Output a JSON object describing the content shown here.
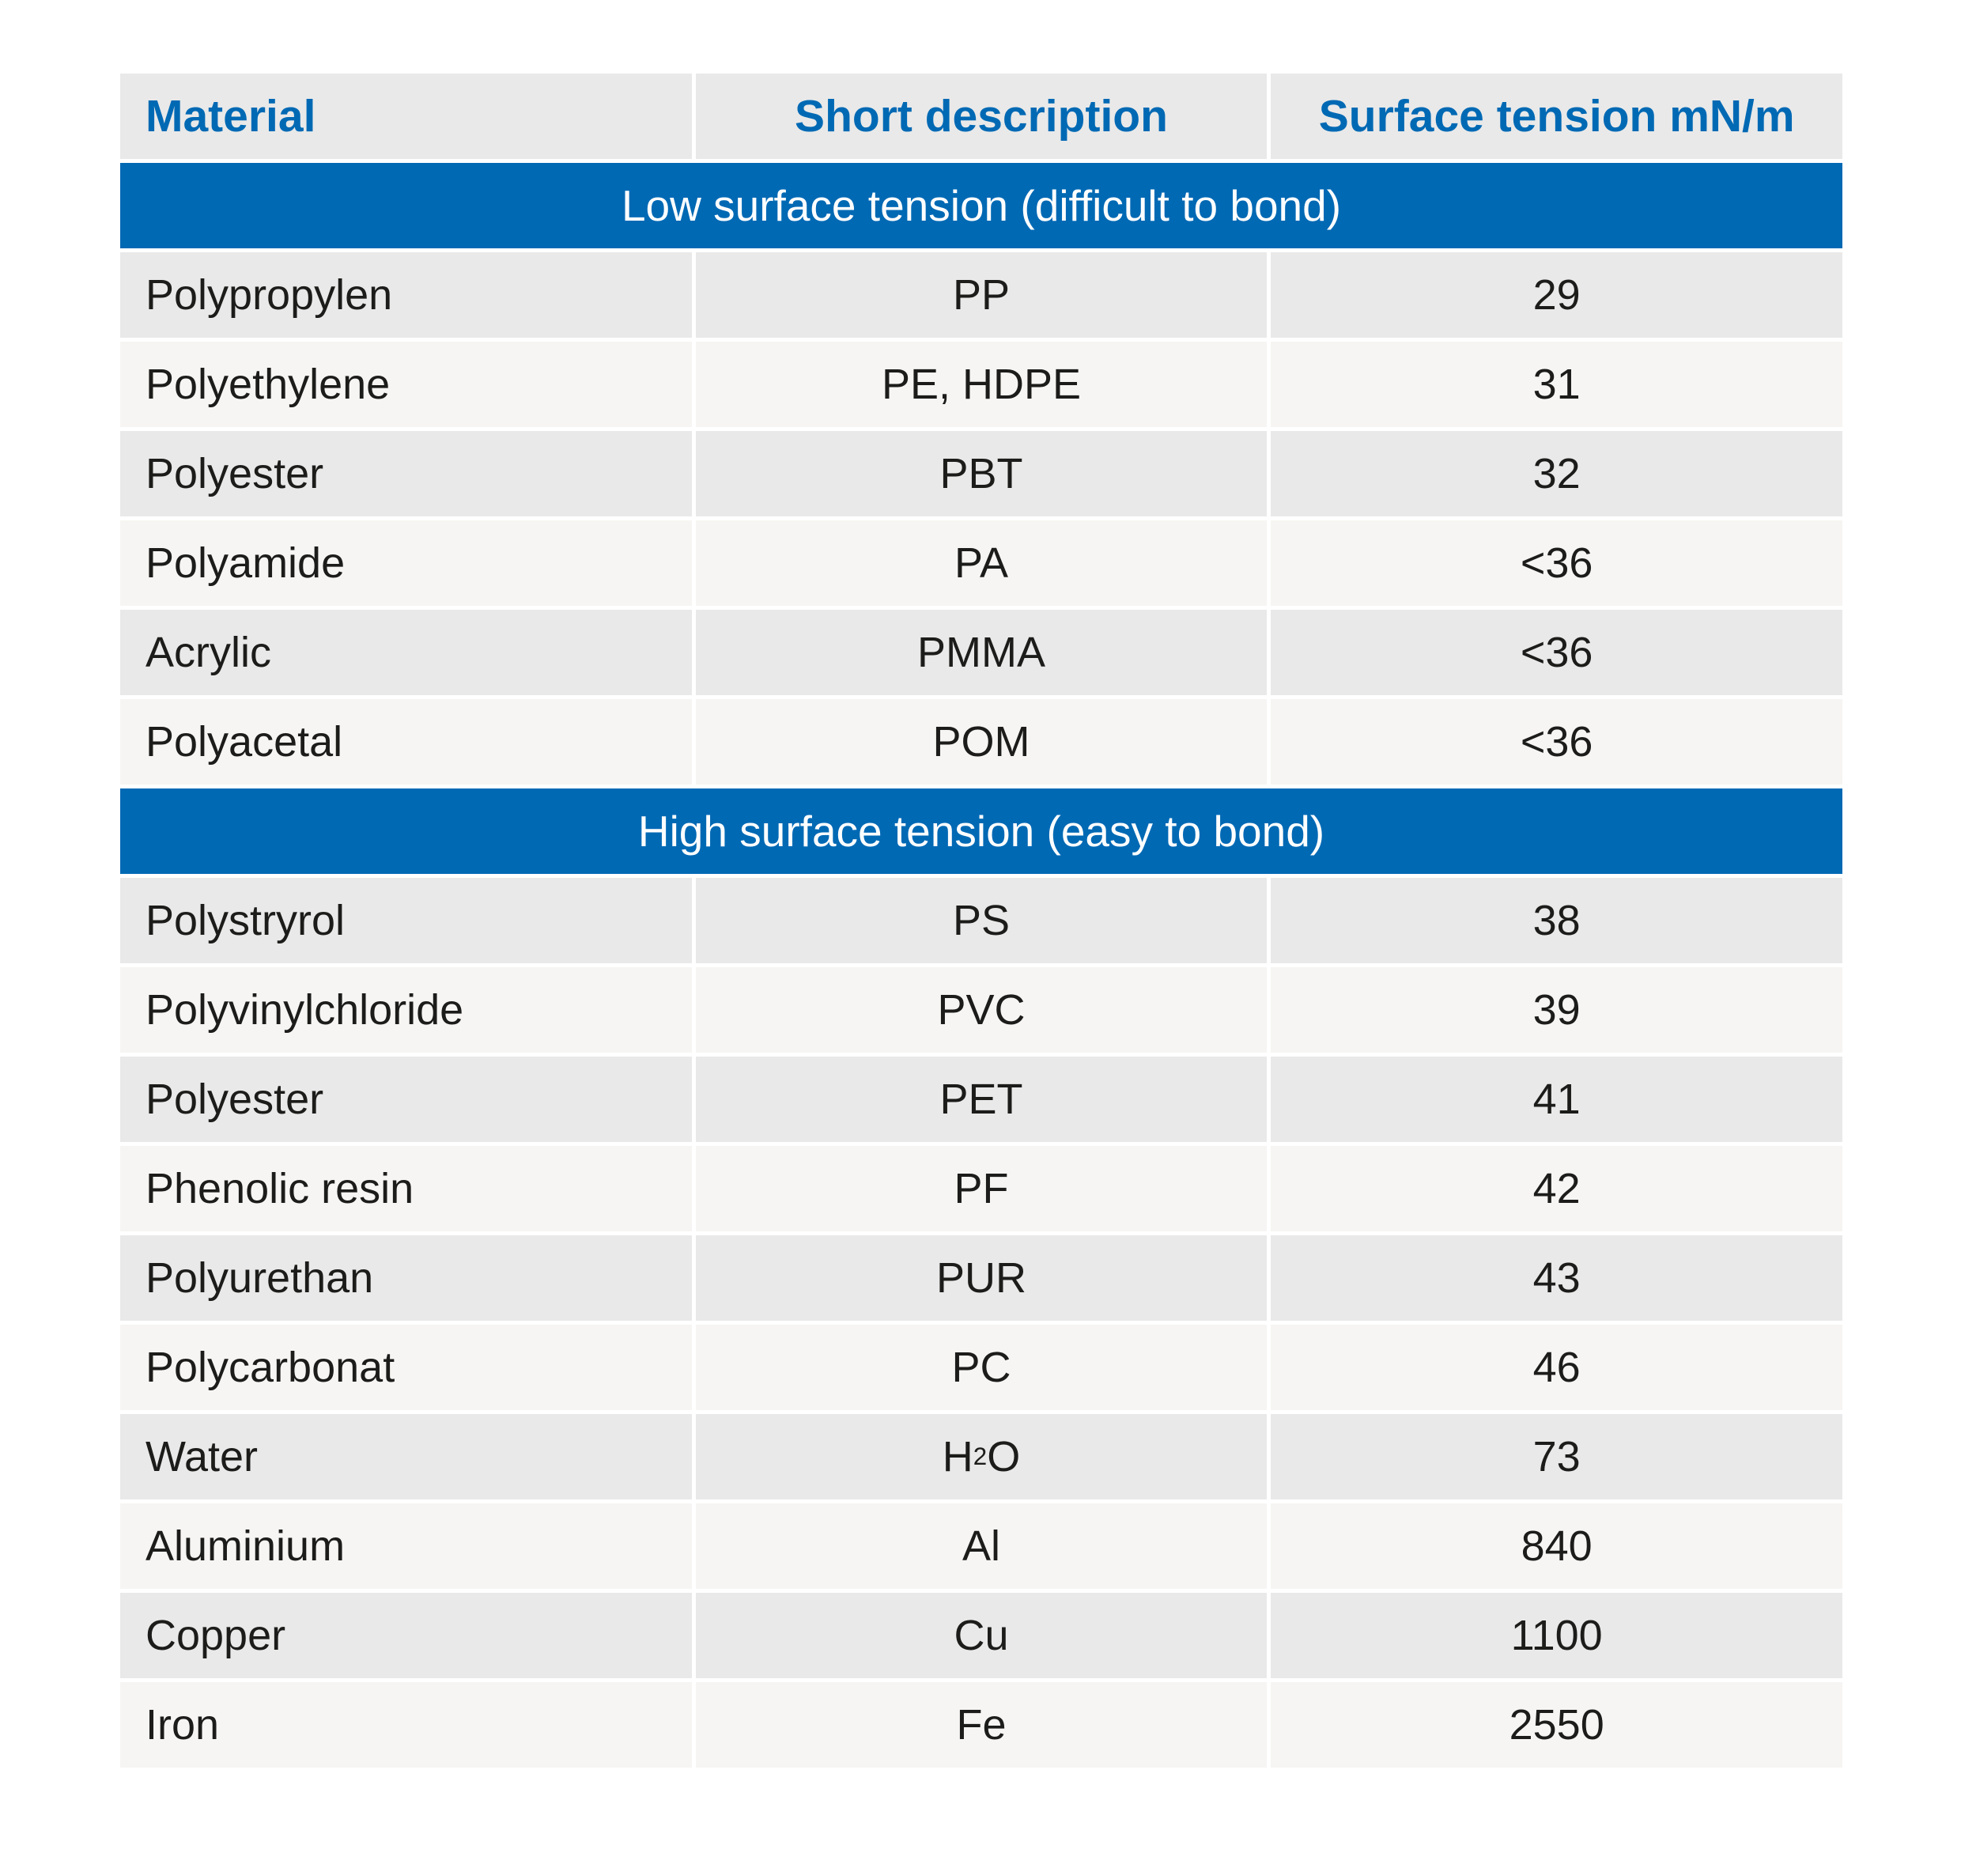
{
  "chart_data": {
    "type": "table",
    "columns": [
      "Material",
      "Short description",
      "Surface tension mN/m"
    ],
    "sections": [
      {
        "label": "Low surface tension (difficult to bond)",
        "rows": [
          [
            "Polypropylen",
            "PP",
            "29"
          ],
          [
            "Polyethylene",
            "PE, HDPE",
            "31"
          ],
          [
            "Polyester",
            "PBT",
            "32"
          ],
          [
            "Polyamide",
            "PA",
            "<36"
          ],
          [
            "Acrylic",
            "PMMA",
            "<36"
          ],
          [
            "Polyacetal",
            "POM",
            "<36"
          ]
        ]
      },
      {
        "label": "High surface tension (easy to bond)",
        "rows": [
          [
            "Polystryrol",
            "PS",
            "38"
          ],
          [
            "Polyvinylchloride",
            "PVC",
            "39"
          ],
          [
            "Polyester",
            "PET",
            "41"
          ],
          [
            "Phenolic resin",
            "PF",
            "42"
          ],
          [
            "Polyurethan",
            "PUR",
            "43"
          ],
          [
            "Polycarbonat",
            "PC",
            "46"
          ],
          [
            "Water",
            "H₂O",
            "73"
          ],
          [
            "Aluminium",
            "Al",
            "840"
          ],
          [
            "Copper",
            "Cu",
            "1100"
          ],
          [
            "Iron",
            "Fe",
            "2550"
          ]
        ]
      }
    ],
    "layout": {
      "column_alignment": [
        "left",
        "center",
        "center"
      ],
      "grid": "white gaps between cells, no border lines",
      "row_striping": "alternating gray / off-white starting gray in each section"
    }
  },
  "colors": {
    "accent_blue": "#0069b4",
    "header_text_blue": "#0069b4",
    "band_text": "#ffffff",
    "body_text": "#1c1c1a",
    "row_shade_dark": "#e9e9e9",
    "row_shade_light": "#f6f5f3",
    "page_background": "#ffffff"
  }
}
